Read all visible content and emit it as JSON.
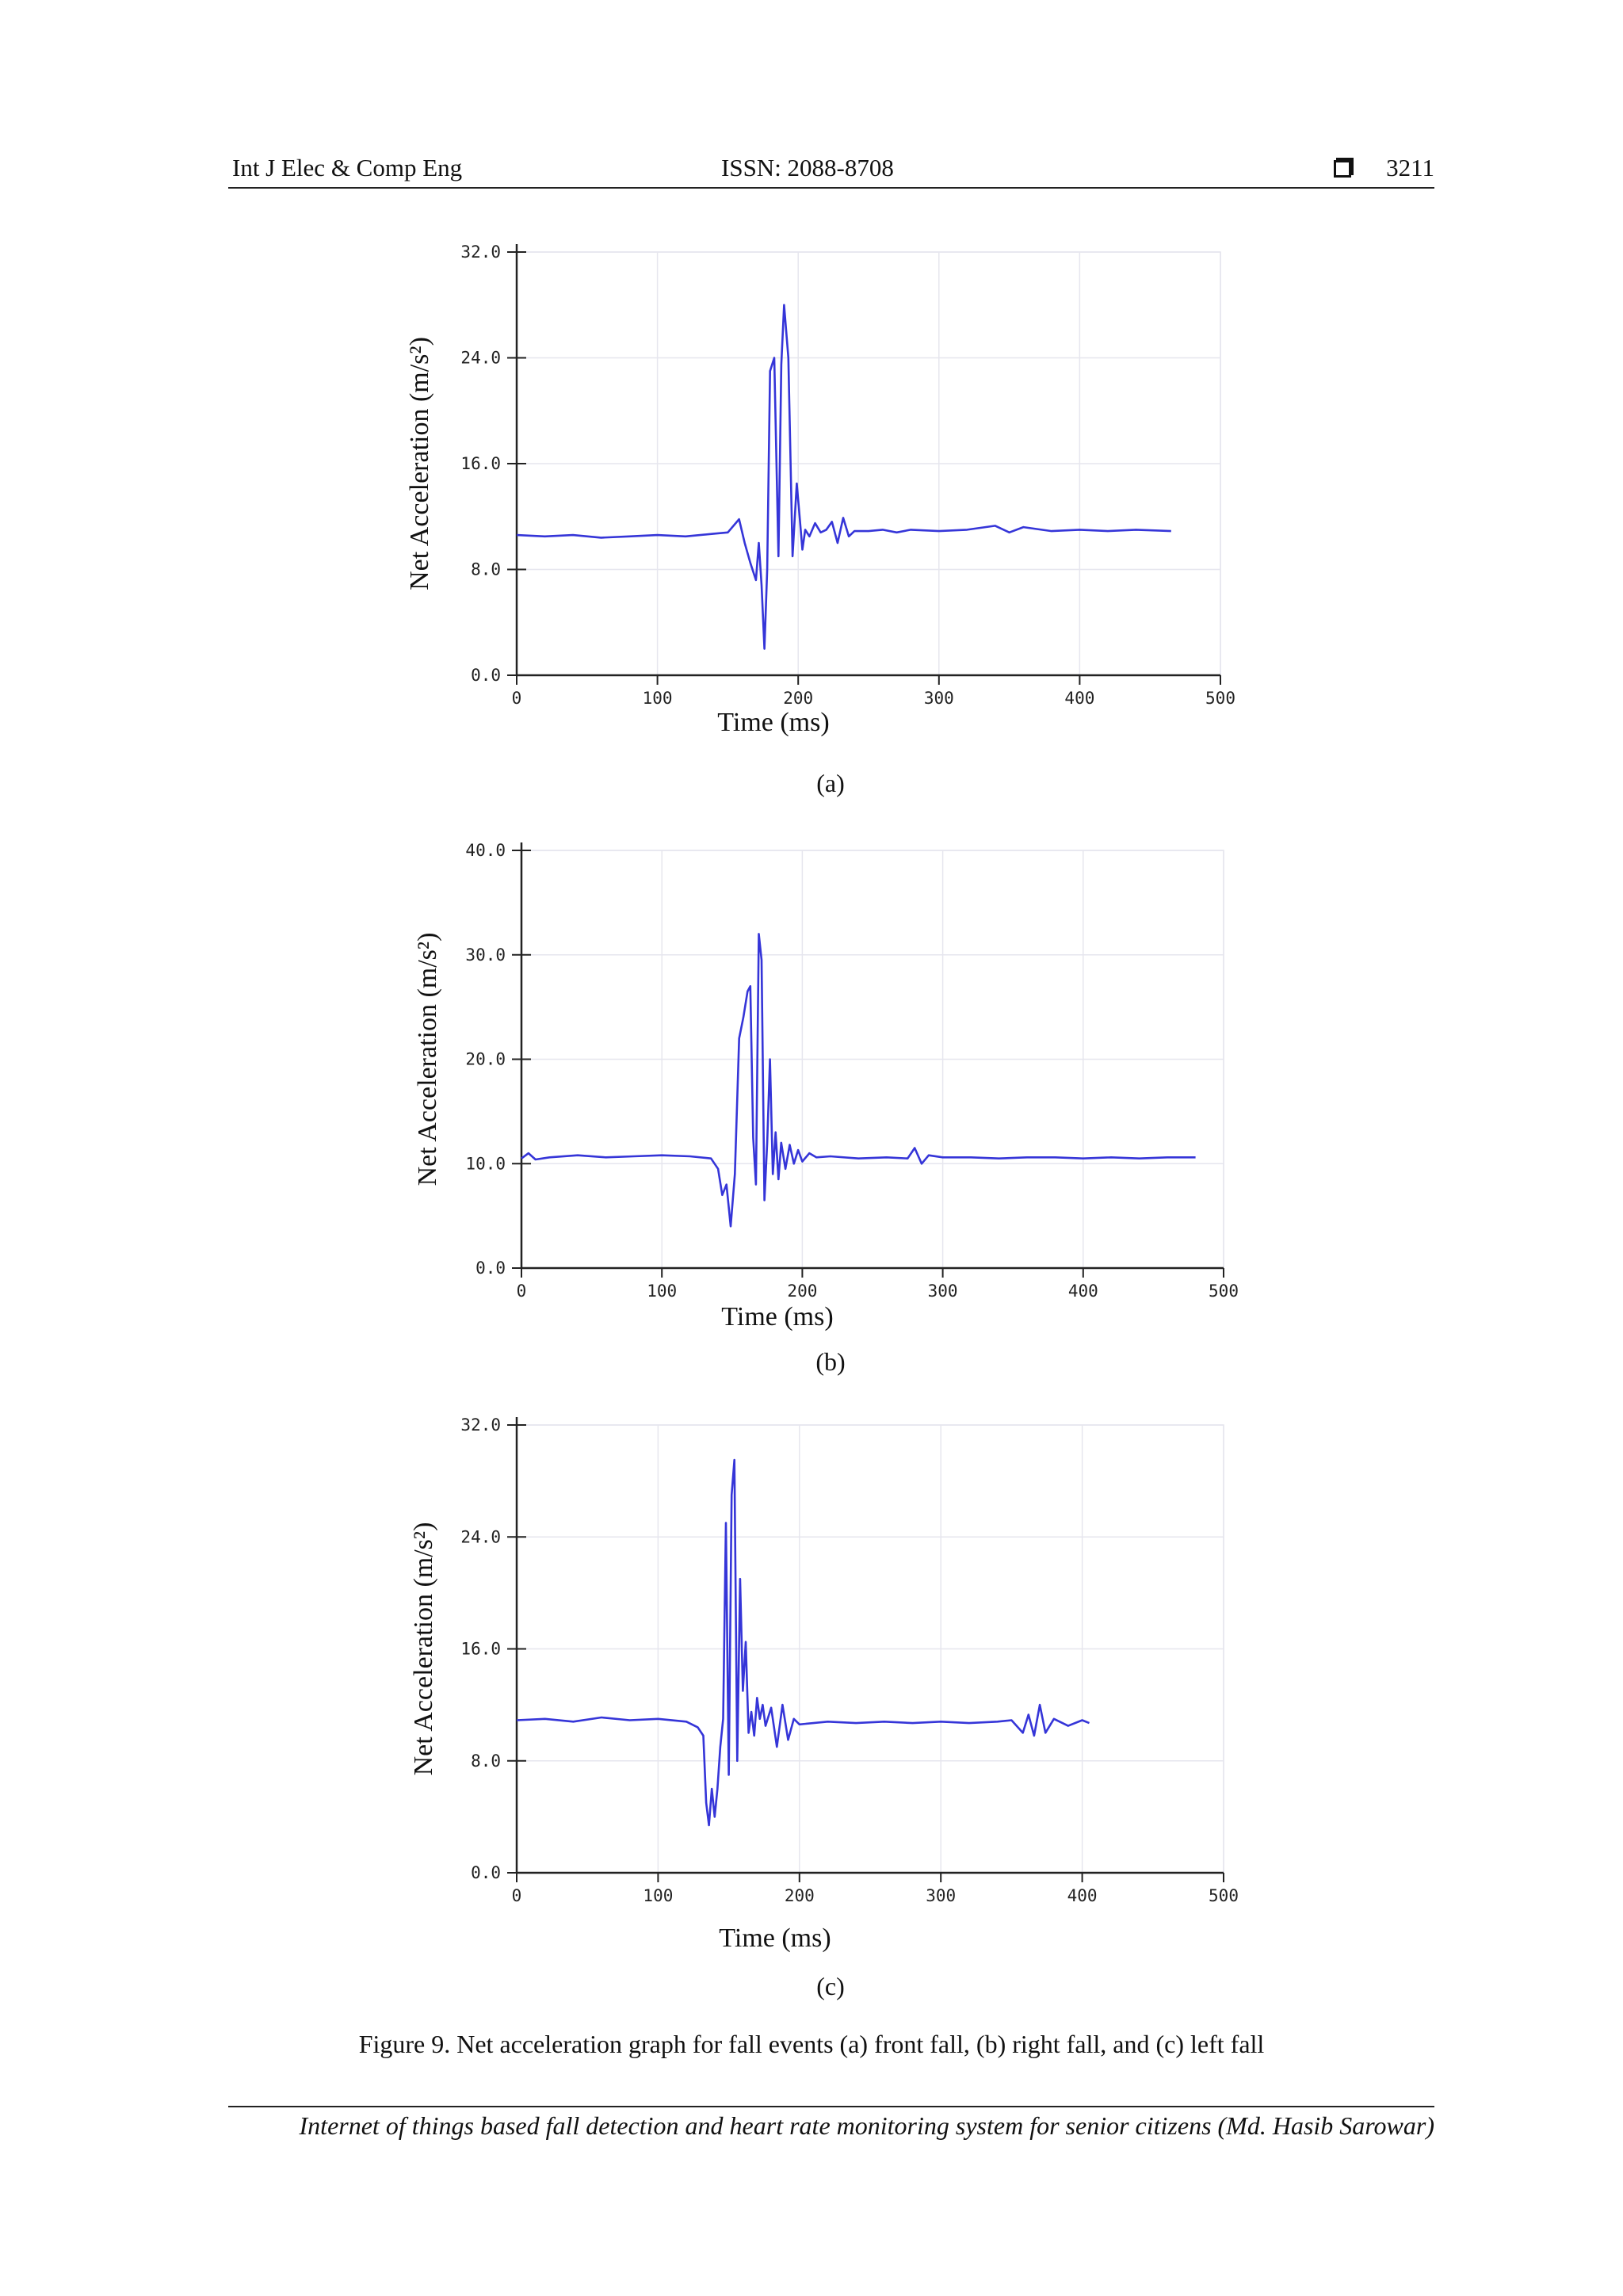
{
  "header": {
    "journal": "Int J Elec & Comp Eng",
    "issn": "ISSN: 2088-8708",
    "page_number": "3211"
  },
  "footer": {
    "text": "Internet of things based fall detection and heart rate monitoring system for senior citizens (Md. Hasib Sarowar)"
  },
  "caption": "Figure 9. Net acceleration graph for fall events (a) front fall, (b) right fall, and (c) left fall",
  "chart_data": [
    {
      "type": "line",
      "panel_label": "(a)",
      "xlabel": "Time (ms)",
      "ylabel": "Net Acceleration (m/s²)",
      "xlim": [
        0,
        500
      ],
      "ylim": [
        0,
        32
      ],
      "xticks": [
        0,
        100,
        200,
        300,
        400,
        500
      ],
      "yticks": [
        0,
        8,
        16,
        24,
        32
      ],
      "xtick_labels": [
        "0",
        "100",
        "200",
        "300",
        "400",
        "500"
      ],
      "ytick_labels": [
        "0.0",
        "8.0",
        "16.0",
        "24.0",
        "32.0"
      ],
      "grid": true,
      "line_color": "#3535d8",
      "series": [
        {
          "x": [
            0,
            20,
            40,
            60,
            80,
            100,
            120,
            140,
            150,
            158,
            162,
            166,
            170,
            172,
            174,
            176,
            178,
            180,
            183,
            186,
            188,
            190,
            193,
            196,
            199,
            201,
            203,
            205,
            208,
            212,
            216,
            220,
            224,
            228,
            232,
            236,
            240,
            250,
            260,
            270,
            280,
            300,
            320,
            340,
            350,
            360,
            380,
            400,
            420,
            440,
            465
          ],
          "y": [
            10.6,
            10.5,
            10.6,
            10.4,
            10.5,
            10.6,
            10.5,
            10.7,
            10.8,
            11.8,
            10.0,
            8.5,
            7.2,
            10.0,
            6.8,
            2.0,
            8.0,
            23.0,
            24.0,
            9.0,
            23.5,
            28.0,
            24.0,
            9.0,
            14.5,
            12.0,
            9.5,
            11.0,
            10.5,
            11.5,
            10.8,
            11.0,
            11.6,
            10.0,
            11.9,
            10.5,
            10.9,
            10.9,
            11.0,
            10.8,
            11.0,
            10.9,
            11.0,
            11.3,
            10.8,
            11.2,
            10.9,
            11.0,
            10.9,
            11.0,
            10.9
          ]
        }
      ]
    },
    {
      "type": "line",
      "panel_label": "(b)",
      "xlabel": "Time (ms)",
      "ylabel": "Net Acceleration (m/s²)",
      "xlim": [
        0,
        500
      ],
      "ylim": [
        0,
        40
      ],
      "xticks": [
        0,
        100,
        200,
        300,
        400,
        500
      ],
      "yticks": [
        0,
        10,
        20,
        30,
        40
      ],
      "xtick_labels": [
        "0",
        "100",
        "200",
        "300",
        "400",
        "500"
      ],
      "ytick_labels": [
        "0.0",
        "10.0",
        "20.0",
        "30.0",
        "40.0"
      ],
      "grid": true,
      "line_color": "#3535d8",
      "series": [
        {
          "x": [
            0,
            5,
            10,
            20,
            40,
            60,
            80,
            100,
            120,
            135,
            140,
            143,
            146,
            149,
            152,
            155,
            158,
            161,
            163,
            165,
            167,
            169,
            171,
            173,
            175,
            177,
            179,
            181,
            183,
            185,
            188,
            191,
            194,
            197,
            200,
            205,
            210,
            220,
            240,
            260,
            275,
            280,
            285,
            290,
            300,
            320,
            340,
            360,
            380,
            400,
            420,
            440,
            460,
            480
          ],
          "y": [
            10.5,
            11.0,
            10.4,
            10.6,
            10.8,
            10.6,
            10.7,
            10.8,
            10.7,
            10.5,
            9.5,
            7.0,
            8.0,
            4.0,
            9.0,
            22.0,
            24.0,
            26.5,
            27.0,
            12.5,
            8.0,
            32.0,
            29.5,
            6.5,
            12.0,
            20.0,
            9.0,
            13.0,
            8.5,
            12.0,
            9.5,
            11.8,
            10.0,
            11.3,
            10.2,
            11.0,
            10.6,
            10.7,
            10.5,
            10.6,
            10.5,
            11.5,
            10.0,
            10.8,
            10.6,
            10.6,
            10.5,
            10.6,
            10.6,
            10.5,
            10.6,
            10.5,
            10.6,
            10.6
          ]
        }
      ]
    },
    {
      "type": "line",
      "panel_label": "(c)",
      "xlabel": "Time (ms)",
      "ylabel": "Net Acceleration (m/s²)",
      "xlim": [
        0,
        500
      ],
      "ylim": [
        0,
        32
      ],
      "xticks": [
        0,
        100,
        200,
        300,
        400,
        500
      ],
      "yticks": [
        0,
        8,
        16,
        24,
        32
      ],
      "xtick_labels": [
        "0",
        "100",
        "200",
        "300",
        "400",
        "500"
      ],
      "ytick_labels": [
        "0.0",
        "8.0",
        "16.0",
        "24.0",
        "32.0"
      ],
      "grid": true,
      "line_color": "#3535d8",
      "series": [
        {
          "x": [
            0,
            20,
            40,
            60,
            80,
            100,
            120,
            128,
            132,
            134,
            136,
            138,
            140,
            142,
            144,
            146,
            148,
            150,
            152,
            154,
            156,
            158,
            160,
            162,
            164,
            166,
            168,
            170,
            172,
            174,
            176,
            180,
            184,
            188,
            192,
            196,
            200,
            220,
            240,
            260,
            280,
            300,
            320,
            340,
            350,
            358,
            362,
            366,
            370,
            374,
            380,
            390,
            400,
            405
          ],
          "y": [
            10.9,
            11.0,
            10.8,
            11.1,
            10.9,
            11.0,
            10.8,
            10.4,
            9.8,
            5.0,
            3.4,
            6.0,
            4.0,
            6.0,
            9.0,
            11.0,
            25.0,
            7.0,
            27.0,
            29.5,
            8.0,
            21.0,
            13.0,
            16.5,
            10.0,
            11.5,
            9.8,
            12.5,
            11.0,
            12.0,
            10.5,
            11.8,
            9.0,
            12.0,
            9.5,
            11.0,
            10.6,
            10.8,
            10.7,
            10.8,
            10.7,
            10.8,
            10.7,
            10.8,
            10.9,
            10.0,
            11.3,
            9.8,
            12.0,
            10.0,
            11.0,
            10.5,
            10.9,
            10.7
          ]
        }
      ]
    }
  ]
}
